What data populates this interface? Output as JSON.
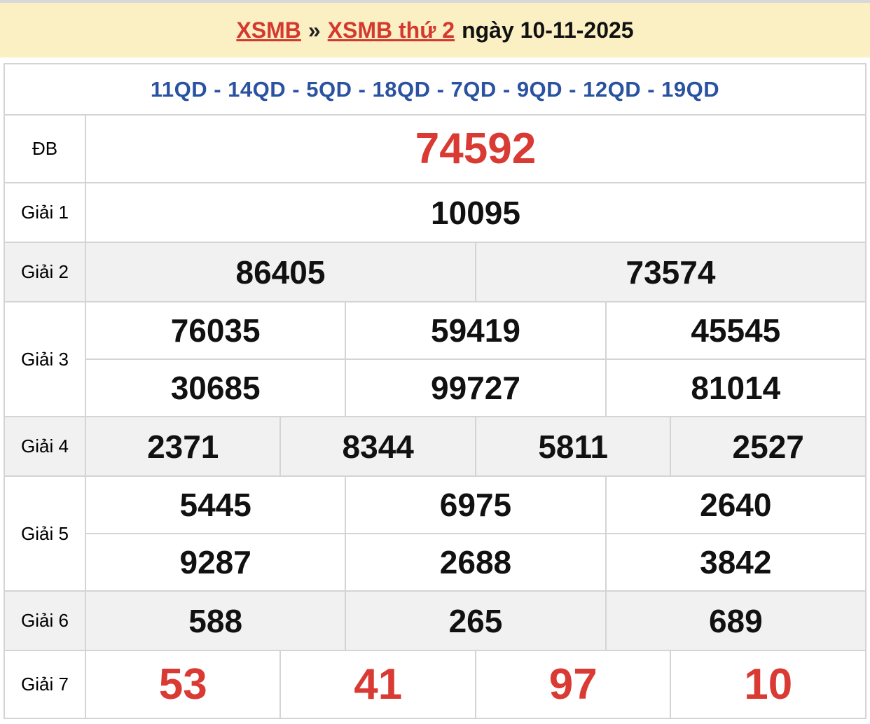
{
  "page": {
    "top_strip_color": "#d8d8d8",
    "background": "#ffffff"
  },
  "breadcrumb": {
    "home_label": "XSMB",
    "separator": "»",
    "current_label": "XSMB thứ 2",
    "date_label": "ngày 10-11-2025",
    "background": "#faf0c3",
    "link_color": "#d4382f"
  },
  "results_table": {
    "signature": "11QD - 14QD - 5QD - 18QD - 7QD - 9QD - 12QD - 19QD",
    "signature_color": "#2a52a0",
    "highlight_color": "#d93a33",
    "alt_row_background": "#f1f1f1",
    "rows": [
      {
        "label": "ĐB",
        "values": [
          [
            "74592"
          ]
        ],
        "highlight": true
      },
      {
        "label": "Giải 1",
        "values": [
          [
            "10095"
          ]
        ]
      },
      {
        "label": "Giải 2",
        "values": [
          [
            "86405",
            "73574"
          ]
        ],
        "alt": true
      },
      {
        "label": "Giải 3",
        "values": [
          [
            "76035",
            "59419",
            "45545"
          ],
          [
            "30685",
            "99727",
            "81014"
          ]
        ]
      },
      {
        "label": "Giải 4",
        "values": [
          [
            "2371",
            "8344",
            "5811",
            "2527"
          ]
        ],
        "alt": true
      },
      {
        "label": "Giải 5",
        "values": [
          [
            "5445",
            "6975",
            "2640"
          ],
          [
            "9287",
            "2688",
            "3842"
          ]
        ]
      },
      {
        "label": "Giải 6",
        "values": [
          [
            "588",
            "265",
            "689"
          ]
        ],
        "alt": true
      },
      {
        "label": "Giải 7",
        "values": [
          [
            "53",
            "41",
            "97",
            "10"
          ]
        ],
        "highlight": true
      }
    ]
  }
}
